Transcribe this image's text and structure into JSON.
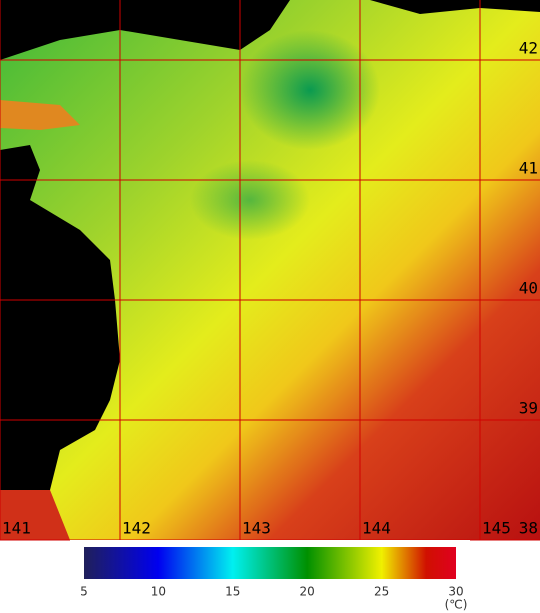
{
  "map": {
    "lonlim": [
      141,
      145.5
    ],
    "latlim": [
      38,
      42.5
    ],
    "lon_ticks": [
      141,
      142,
      143,
      144,
      145
    ],
    "lat_ticks": [
      42,
      41,
      40,
      39,
      38
    ]
  },
  "colorbar": {
    "lim": [
      5,
      30
    ],
    "ticks": [
      5,
      10,
      15,
      20,
      25,
      30
    ],
    "unit": "(℃)"
  }
}
